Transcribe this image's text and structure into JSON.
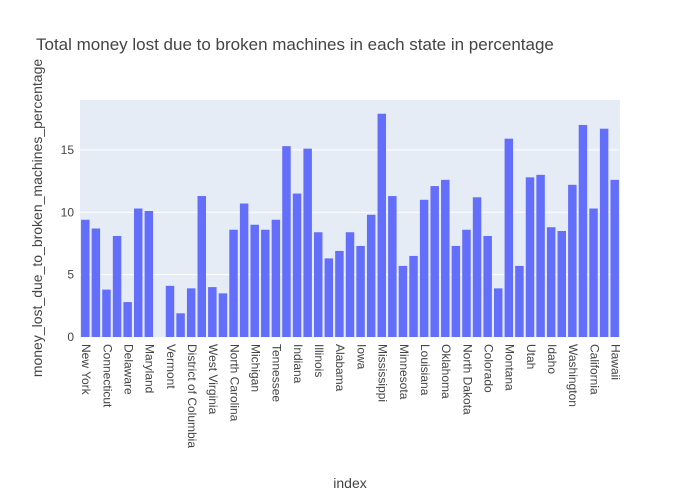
{
  "chart_data": {
    "type": "bar",
    "title": "Total money lost due to broken machines in each state in percentage",
    "xlabel": "index",
    "ylabel": "money_lost_due_to_broken_machines_percentage",
    "ylim": [
      0,
      19
    ],
    "yticks": [
      0,
      5,
      10,
      15
    ],
    "grid": true,
    "legend": "none",
    "colors": {
      "bar": "#636efa",
      "plot_bg": "#e5ecf6",
      "grid": "#ffffff",
      "text": "#444444"
    },
    "categories": [
      "New York",
      "",
      "Connecticut",
      "",
      "Delaware",
      "",
      "Maryland",
      "",
      "Vermont",
      "",
      "District of Columbia",
      "",
      "West Virginia",
      "",
      "North Carolina",
      "",
      "Michigan",
      "",
      "Tennessee",
      "",
      "Indiana",
      "",
      "Illinois",
      "",
      "Alabama",
      "",
      "Iowa",
      "",
      "Mississippi",
      "",
      "Minnesota",
      "",
      "Louisiana",
      "",
      "Oklahoma",
      "",
      "North Dakota",
      "",
      "Colorado",
      "",
      "Montana",
      "",
      "Utah",
      "",
      "Idaho",
      "",
      "Washington",
      "",
      "California",
      "",
      "Hawaii"
    ],
    "values": [
      9.4,
      8.7,
      3.8,
      8.1,
      2.8,
      10.3,
      10.1,
      0,
      4.1,
      1.9,
      3.9,
      11.3,
      4.0,
      3.5,
      8.6,
      10.7,
      9.0,
      8.6,
      9.4,
      15.3,
      11.5,
      15.1,
      8.4,
      6.3,
      6.9,
      8.4,
      7.3,
      9.8,
      17.9,
      11.3,
      5.7,
      6.5,
      11.0,
      12.1,
      12.6,
      7.3,
      8.6,
      11.2,
      8.1,
      3.9,
      15.9,
      5.7,
      12.8,
      13.0,
      8.8,
      8.5,
      12.2,
      17.0,
      10.3,
      16.7,
      12.6
    ]
  }
}
